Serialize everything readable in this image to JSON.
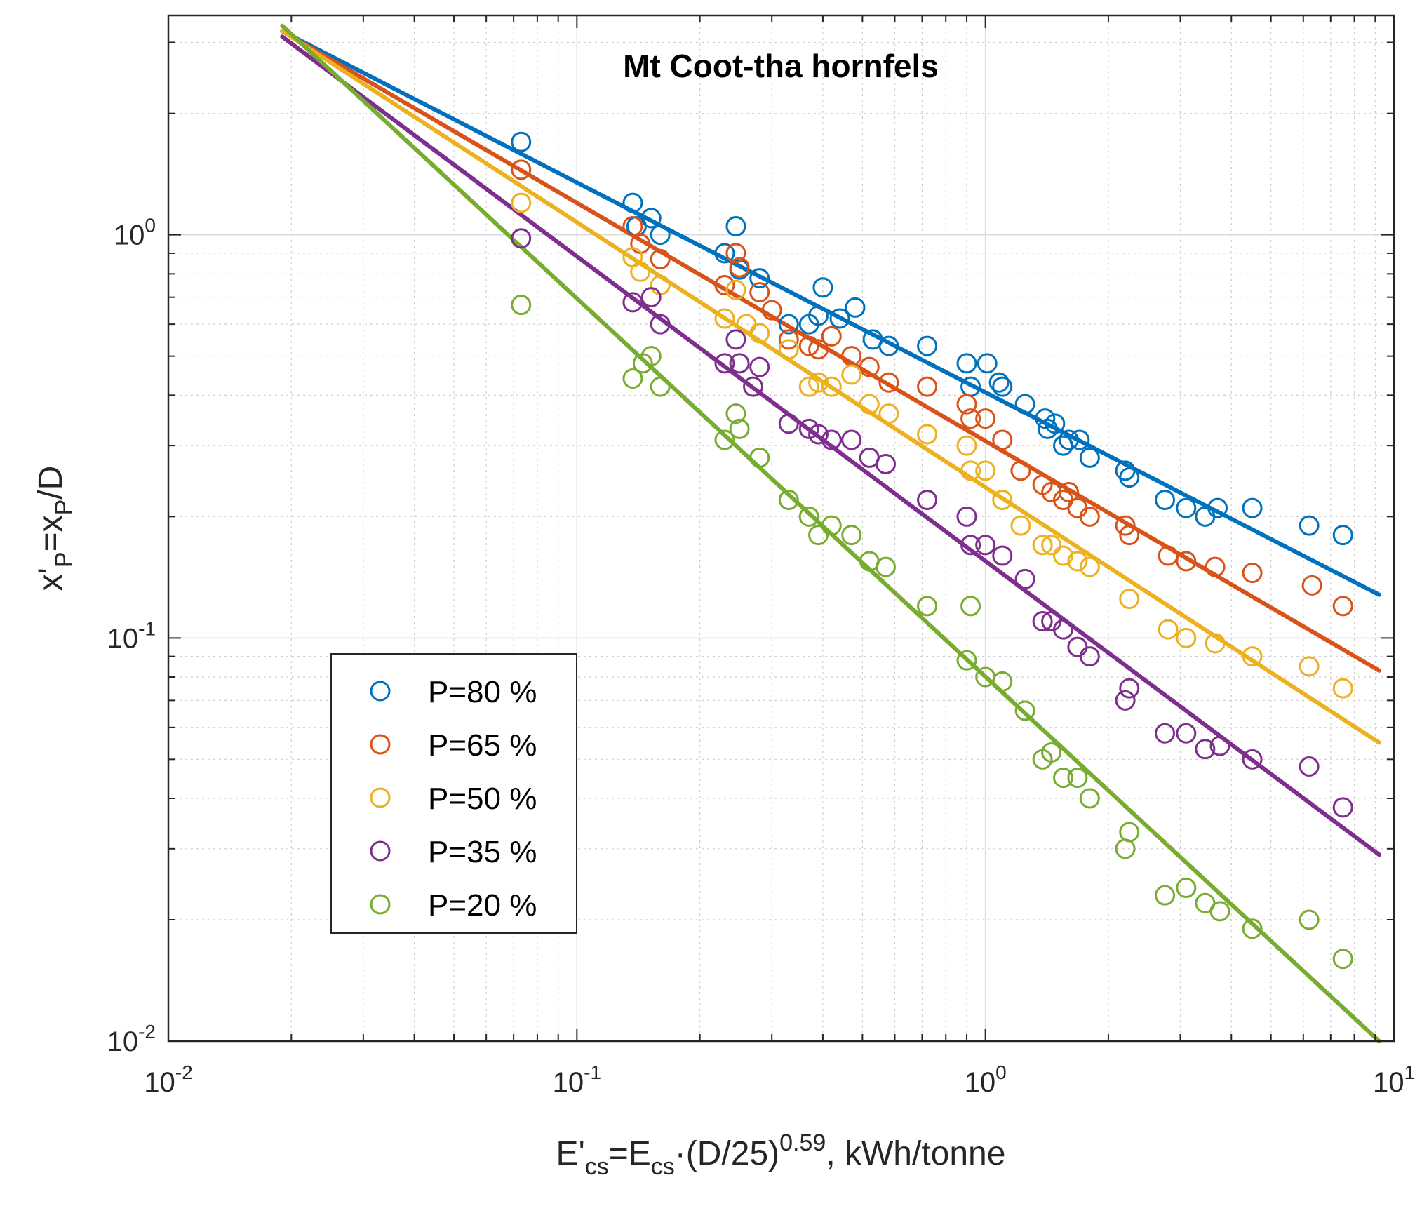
{
  "chart_data": {
    "type": "scatter",
    "title": "Mt Coot-tha hornfels",
    "x_scale": "log",
    "y_scale": "log",
    "xlim": [
      0.01,
      10
    ],
    "ylim": [
      0.01,
      3.5
    ],
    "grid": true,
    "minor_grid": true,
    "legend_position": "lower-left",
    "xlabel": {
      "base": "E'",
      "sub1": "cs",
      "mid": "=E",
      "sub2": "cs",
      "mid2": "·(D/25)",
      "sup": "0.59",
      "tail": ", kWh/tonne"
    },
    "ylabel": {
      "base": "x'",
      "sub1": "P",
      "mid": "=x",
      "sub2": "P",
      "tail": "/D"
    },
    "x_ticks": [
      {
        "value": 0.01,
        "base": "10",
        "exp": "-2"
      },
      {
        "value": 0.1,
        "base": "10",
        "exp": "-1"
      },
      {
        "value": 1,
        "base": "10",
        "exp": "0"
      },
      {
        "value": 10,
        "base": "10",
        "exp": "1"
      }
    ],
    "y_ticks": [
      {
        "value": 0.01,
        "base": "10",
        "exp": "-2"
      },
      {
        "value": 0.1,
        "base": "10",
        "exp": "-1"
      },
      {
        "value": 1,
        "base": "10",
        "exp": "0"
      }
    ],
    "series": [
      {
        "name": "P=80 %",
        "color": "#0072BD",
        "fit": {
          "x": [
            0.019,
            9.2
          ],
          "y": [
            3.2,
            0.128
          ]
        },
        "x": [
          0.073,
          0.137,
          0.14,
          0.152,
          0.16,
          0.23,
          0.245,
          0.25,
          0.28,
          0.33,
          0.37,
          0.39,
          0.4,
          0.44,
          0.48,
          0.53,
          0.58,
          0.72,
          0.9,
          0.92,
          1.01,
          1.08,
          1.1,
          1.25,
          1.4,
          1.42,
          1.48,
          1.55,
          1.6,
          1.7,
          1.8,
          2.2,
          2.25,
          2.75,
          3.1,
          3.45,
          3.7,
          4.5,
          6.2,
          7.5
        ],
        "y": [
          1.7,
          1.2,
          1.05,
          1.1,
          1.0,
          0.9,
          1.05,
          0.82,
          0.78,
          0.6,
          0.6,
          0.63,
          0.74,
          0.62,
          0.66,
          0.55,
          0.53,
          0.53,
          0.48,
          0.42,
          0.48,
          0.43,
          0.42,
          0.38,
          0.35,
          0.33,
          0.34,
          0.3,
          0.31,
          0.31,
          0.28,
          0.26,
          0.25,
          0.22,
          0.21,
          0.2,
          0.21,
          0.21,
          0.19,
          0.18
        ]
      },
      {
        "name": "P=65 %",
        "color": "#D95319",
        "fit": {
          "x": [
            0.019,
            9.2
          ],
          "y": [
            3.2,
            0.083
          ]
        },
        "x": [
          0.073,
          0.137,
          0.143,
          0.16,
          0.23,
          0.245,
          0.25,
          0.28,
          0.3,
          0.33,
          0.37,
          0.39,
          0.42,
          0.47,
          0.52,
          0.58,
          0.72,
          0.9,
          0.92,
          1.0,
          1.1,
          1.22,
          1.38,
          1.45,
          1.55,
          1.6,
          1.68,
          1.8,
          2.2,
          2.25,
          2.8,
          3.1,
          3.65,
          4.5,
          6.3,
          7.5
        ],
        "y": [
          1.45,
          1.05,
          0.95,
          0.87,
          0.75,
          0.9,
          0.83,
          0.72,
          0.65,
          0.55,
          0.53,
          0.52,
          0.56,
          0.5,
          0.47,
          0.43,
          0.42,
          0.38,
          0.35,
          0.35,
          0.31,
          0.26,
          0.24,
          0.23,
          0.22,
          0.23,
          0.21,
          0.2,
          0.19,
          0.18,
          0.16,
          0.155,
          0.15,
          0.145,
          0.135,
          0.12
        ]
      },
      {
        "name": "P=50 %",
        "color": "#EDB120",
        "fit": {
          "x": [
            0.019,
            9.2
          ],
          "y": [
            3.2,
            0.055
          ]
        },
        "x": [
          0.073,
          0.137,
          0.143,
          0.16,
          0.23,
          0.245,
          0.26,
          0.28,
          0.33,
          0.37,
          0.39,
          0.42,
          0.47,
          0.52,
          0.58,
          0.72,
          0.9,
          0.92,
          1.0,
          1.1,
          1.22,
          1.38,
          1.45,
          1.55,
          1.68,
          1.8,
          2.25,
          2.8,
          3.1,
          3.65,
          4.5,
          6.2,
          7.5
        ],
        "y": [
          1.2,
          0.88,
          0.81,
          0.75,
          0.62,
          0.73,
          0.6,
          0.57,
          0.52,
          0.42,
          0.43,
          0.42,
          0.45,
          0.38,
          0.36,
          0.32,
          0.3,
          0.26,
          0.26,
          0.22,
          0.19,
          0.17,
          0.17,
          0.16,
          0.155,
          0.15,
          0.125,
          0.105,
          0.1,
          0.097,
          0.09,
          0.085,
          0.075
        ]
      },
      {
        "name": "P=35 %",
        "color": "#7E2F8E",
        "fit": {
          "x": [
            0.019,
            9.2
          ],
          "y": [
            3.1,
            0.029
          ]
        },
        "x": [
          0.073,
          0.137,
          0.152,
          0.16,
          0.23,
          0.245,
          0.25,
          0.27,
          0.28,
          0.33,
          0.37,
          0.39,
          0.42,
          0.47,
          0.52,
          0.57,
          0.72,
          0.9,
          0.92,
          1.0,
          1.1,
          1.25,
          1.38,
          1.45,
          1.55,
          1.68,
          1.8,
          2.2,
          2.25,
          2.75,
          3.1,
          3.45,
          3.75,
          4.5,
          6.2,
          7.5
        ],
        "y": [
          0.98,
          0.68,
          0.7,
          0.6,
          0.48,
          0.55,
          0.48,
          0.42,
          0.47,
          0.34,
          0.33,
          0.32,
          0.31,
          0.31,
          0.28,
          0.27,
          0.22,
          0.2,
          0.17,
          0.17,
          0.16,
          0.14,
          0.11,
          0.11,
          0.105,
          0.095,
          0.09,
          0.07,
          0.075,
          0.058,
          0.058,
          0.053,
          0.054,
          0.05,
          0.048,
          0.038
        ]
      },
      {
        "name": "P=20 %",
        "color": "#77AC30",
        "fit": {
          "x": [
            0.019,
            9.2
          ],
          "y": [
            3.3,
            0.01
          ]
        },
        "x": [
          0.073,
          0.137,
          0.145,
          0.152,
          0.16,
          0.23,
          0.245,
          0.25,
          0.28,
          0.33,
          0.37,
          0.39,
          0.42,
          0.47,
          0.52,
          0.57,
          0.72,
          0.9,
          0.92,
          1.0,
          1.1,
          1.25,
          1.38,
          1.45,
          1.55,
          1.68,
          1.8,
          2.2,
          2.25,
          2.75,
          3.1,
          3.45,
          3.75,
          4.5,
          6.2,
          7.5
        ],
        "y": [
          0.67,
          0.44,
          0.48,
          0.5,
          0.42,
          0.31,
          0.36,
          0.33,
          0.28,
          0.22,
          0.2,
          0.18,
          0.19,
          0.18,
          0.155,
          0.15,
          0.12,
          0.088,
          0.12,
          0.08,
          0.078,
          0.066,
          0.05,
          0.052,
          0.045,
          0.045,
          0.04,
          0.03,
          0.033,
          0.023,
          0.024,
          0.022,
          0.021,
          0.019,
          0.02,
          0.016
        ]
      }
    ]
  }
}
